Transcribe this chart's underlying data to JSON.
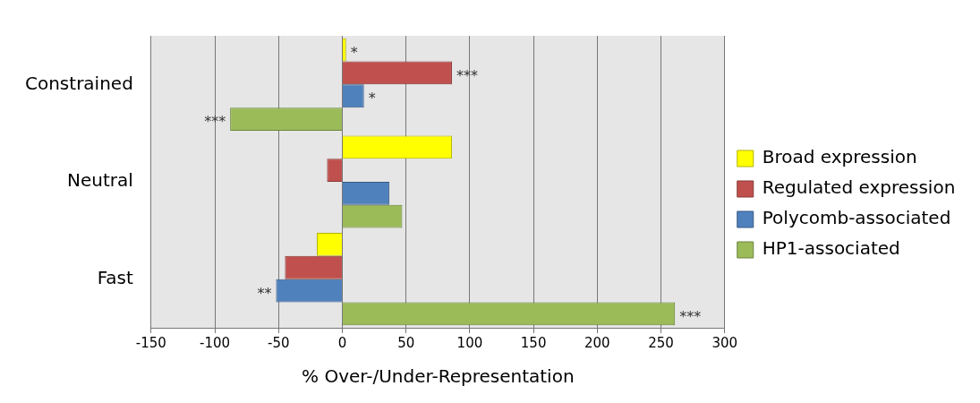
{
  "chart_data": {
    "type": "bar",
    "orientation": "horizontal",
    "xlabel": "% Over-/Under-Representation",
    "categories": [
      "Constrained",
      "Neutral",
      "Fast"
    ],
    "series": [
      {
        "name": "Broad expression",
        "color": "#ffff00",
        "values": [
          3,
          86,
          -20
        ],
        "value_labels": [
          "*",
          null,
          null
        ]
      },
      {
        "name": "Regulated expression",
        "color": "#c0504d",
        "values": [
          86,
          -12,
          -45
        ],
        "value_labels": [
          "***",
          null,
          null
        ]
      },
      {
        "name": "Polycomb-associated",
        "color": "#4f81bd",
        "values": [
          17,
          37,
          -52
        ],
        "value_labels": [
          "*",
          null,
          "**"
        ]
      },
      {
        "name": "HP1-associated",
        "color": "#9bbb59",
        "values": [
          -88,
          47,
          261
        ],
        "value_labels": [
          "***",
          null,
          "***"
        ]
      }
    ],
    "xlim": [
      -150,
      300
    ],
    "xticks": [
      -150,
      -100,
      -50,
      0,
      50,
      100,
      150,
      200,
      250,
      300
    ],
    "grid": "x",
    "legend": "right"
  }
}
